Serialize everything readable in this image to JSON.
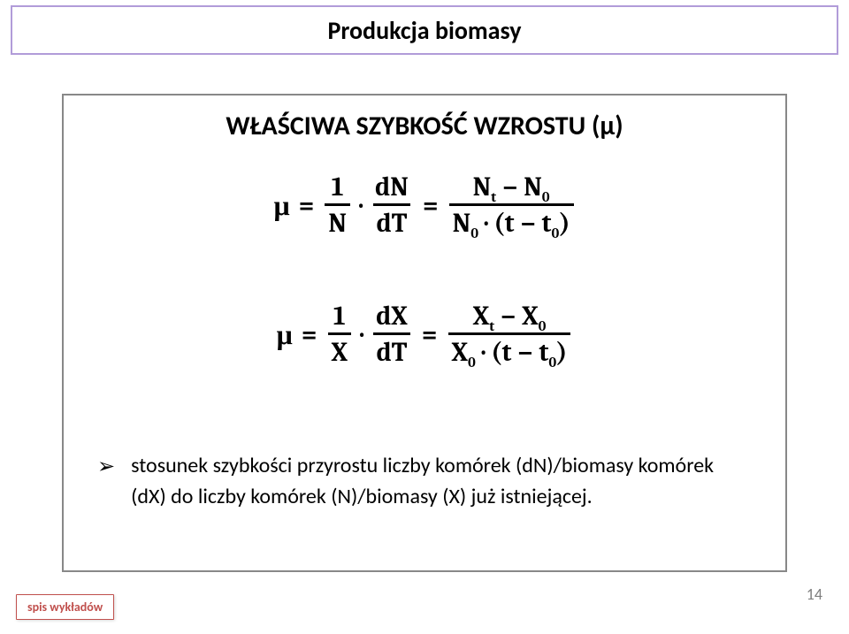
{
  "title": "Produkcja biomasy",
  "heading": "WŁAŚCIWA SZYBKOŚĆ WZROSTU (μ)",
  "eq1": {
    "lhs": "μ",
    "frac1": {
      "num": "1",
      "den": "N"
    },
    "frac2": {
      "num": "dN",
      "den": "dT"
    },
    "rhs_num_left": "N",
    "rhs_num_left_sub": "t",
    "rhs_num_minus": "−",
    "rhs_num_right": "N",
    "rhs_num_right_sub": "0",
    "rhs_den_left": "N",
    "rhs_den_left_sub": "0",
    "rhs_den_mid": "(t − t",
    "rhs_den_sub": "0",
    "rhs_den_end": ")"
  },
  "eq2": {
    "lhs": "μ",
    "frac1": {
      "num": "1",
      "den": "X"
    },
    "frac2": {
      "num": "dX",
      "den": "dT"
    },
    "rhs_num_left": "X",
    "rhs_num_left_sub": "t",
    "rhs_num_minus": "−",
    "rhs_num_right": "X",
    "rhs_num_right_sub": "0",
    "rhs_den_left": "X",
    "rhs_den_left_sub": "0",
    "rhs_den_mid": "(t − t",
    "rhs_den_sub": "0",
    "rhs_den_end": ")"
  },
  "bullet": {
    "marker": "➢",
    "text": "stosunek szybkości przyrostu liczby komórek (dN)/biomasy komórek (dX) do liczby komórek (N)/biomasy (X) już istniejącej."
  },
  "footer_button": "spis wykładów",
  "page_number": "14",
  "colors": {
    "title_border": "#b19cd9",
    "content_border": "#888888",
    "button_border": "#c0504d",
    "button_text": "#c0504d",
    "page_num": "#7f7f7f"
  }
}
